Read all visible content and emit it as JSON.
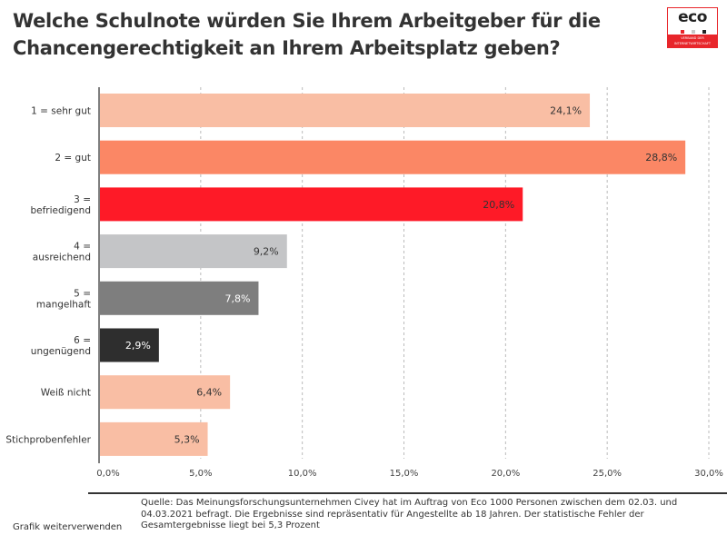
{
  "title": "Welche Schulnote würden Sie Ihrem Arbeitgeber für die Chancengerechtigkeit an Ihrem Arbeitsplatz geben?",
  "logo": {
    "text": "eco",
    "subtext": "VERBAND DER INTERNETWIRTSCHAFT",
    "dot_colors": [
      "#e8262b",
      "#c8c8c8",
      "#222222"
    ],
    "band_color": "#e8262b"
  },
  "chart_data": {
    "type": "bar",
    "orientation": "horizontal",
    "categories": [
      [
        "1 = sehr gut"
      ],
      [
        "2 = gut"
      ],
      [
        "3 =",
        "befriedigend"
      ],
      [
        "4 =",
        "ausreichend"
      ],
      [
        "5 =",
        "mangelhaft"
      ],
      [
        "6 =",
        "ungenügend"
      ],
      [
        "Weiß nicht"
      ],
      [
        "Stichprobenfehler"
      ]
    ],
    "values": [
      24.1,
      28.8,
      20.8,
      9.2,
      7.8,
      2.9,
      6.4,
      5.3
    ],
    "value_labels": [
      "24,1%",
      "28,8%",
      "20,8%",
      "9,2%",
      "7,8%",
      "2,9%",
      "6,4%",
      "5,3%"
    ],
    "colors": [
      "#f9bea4",
      "#fb8765",
      "#fe1a27",
      "#c4c5c7",
      "#7e7e7e",
      "#2e2e2e",
      "#f9bea4",
      "#f9bea4"
    ],
    "label_colors": [
      "#333333",
      "#333333",
      "#333333",
      "#333333",
      "#ffffff",
      "#ffffff",
      "#333333",
      "#333333"
    ],
    "xlim": [
      0,
      30
    ],
    "xticks": [
      0,
      5,
      10,
      15,
      20,
      25,
      30
    ],
    "xtick_labels": [
      "0,0%",
      "5,0%",
      "10,0%",
      "15,0%",
      "20,0%",
      "25,0%",
      "30,0%"
    ],
    "grid": "vertical dashed",
    "xlabel": "",
    "ylabel": ""
  },
  "footer": {
    "source": "Quelle: Das Meinungsforschungsunternehmen Civey hat im Auftrag von Eco 1000 Personen zwischen dem 02.03. und 04.03.2021 befragt. Die Ergebnisse sind repräsentativ für Angestellte ab 18 Jahren. Der statistische Fehler der Gesamtergebnisse liegt bei 5,3 Prozent",
    "reuse_link": "Grafik weiterverwenden"
  }
}
